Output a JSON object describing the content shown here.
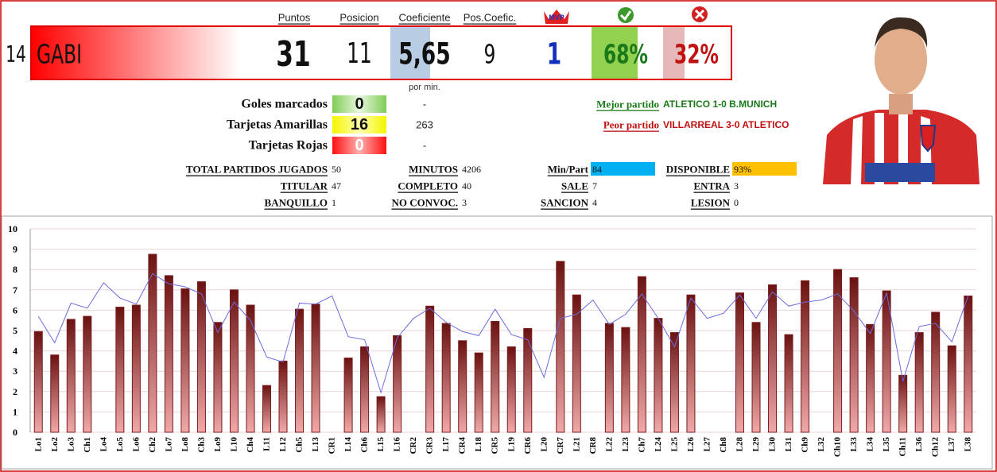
{
  "header": {
    "columns": [
      "Puntos",
      "Posicion",
      "Coeficiente",
      "Pos.Coefic."
    ],
    "mvp": "MVP"
  },
  "player": {
    "number": 14,
    "name": "GABI",
    "puntos": 31,
    "posicion": 11,
    "coeficiente": "5,65",
    "pos_coefic": 9,
    "mvp": 1,
    "win_pct": "68%",
    "loss_pct": "32%"
  },
  "stats": {
    "per_min_header": "por min.",
    "rows": [
      [
        "Goles marcados",
        0,
        "-"
      ],
      [
        "Tarjetas Amarillas",
        16,
        263
      ],
      [
        "Tarjetas Rojas",
        0,
        "-"
      ]
    ]
  },
  "matches": {
    "best": [
      "Mejor partido",
      "ATLETICO 1-0 B.MUNICH"
    ],
    "worst": [
      "Peor partido",
      "VILLARREAL 3-0 ATLETICO"
    ]
  },
  "totals": {
    "rows": [
      [
        [
          "TOTAL PARTIDOS JUGADOS",
          50
        ],
        [
          "MINUTOS",
          4206
        ],
        [
          "Min/Part",
          84
        ],
        [
          "DISPONIBLE",
          "93%"
        ]
      ],
      [
        [
          "TITULAR",
          47
        ],
        [
          "COMPLETO",
          40
        ],
        [
          "SALE",
          7
        ],
        [
          "ENTRA",
          3
        ]
      ],
      [
        [
          "BANQUILLO",
          1
        ],
        [
          "NO CONVOC.",
          3
        ],
        [
          "SANCION",
          4
        ],
        [
          "LESION",
          0
        ]
      ]
    ]
  },
  "chart_data": {
    "type": "bar",
    "categories": [
      "Lo1",
      "Lo2",
      "Lo3",
      "Ch1",
      "Lo4",
      "Lo5",
      "Lo6",
      "Ch2",
      "Lo7",
      "Lo8",
      "Ch3",
      "Lo9",
      "L10",
      "Ch4",
      "L11",
      "L12",
      "Ch5",
      "L13",
      "CR1",
      "L14",
      "Ch6",
      "L15",
      "L16",
      "CR2",
      "CR3",
      "L17",
      "CR4",
      "L18",
      "CR5",
      "L19",
      "CR6",
      "L20",
      "CR7",
      "L21",
      "CR8",
      "L22",
      "L23",
      "Ch7",
      "L24",
      "L25",
      "L26",
      "L27",
      "Ch8",
      "L28",
      "L29",
      "L30",
      "L31",
      "Ch9",
      "L32",
      "Ch10",
      "L33",
      "L34",
      "L35",
      "Ch11",
      "L36",
      "Ch12",
      "L37",
      "L38"
    ],
    "series": [
      {
        "type": "bar",
        "color": "#7a1c1c",
        "values": [
          4.95,
          3.8,
          5.55,
          5.7,
          null,
          6.15,
          6.25,
          8.75,
          7.7,
          7.05,
          7.4,
          5.4,
          7.0,
          6.25,
          2.3,
          3.5,
          6.05,
          6.3,
          null,
          3.65,
          4.2,
          1.75,
          4.75,
          null,
          6.2,
          5.35,
          4.5,
          3.9,
          5.45,
          4.2,
          5.1,
          null,
          8.4,
          6.75,
          null,
          5.35,
          5.15,
          7.65,
          5.6,
          4.9,
          6.75,
          null,
          null,
          6.85,
          5.4,
          7.25,
          4.8,
          7.45,
          null,
          8.0,
          7.6,
          5.3,
          6.95,
          2.8,
          4.9,
          5.9,
          4.25,
          6.7
        ]
      },
      {
        "type": "line",
        "color": "#6b6be0",
        "values": [
          5.7,
          4.4,
          6.35,
          6.1,
          7.35,
          6.6,
          6.3,
          7.8,
          7.3,
          7.15,
          6.8,
          4.9,
          6.4,
          5.5,
          3.7,
          3.45,
          6.35,
          6.3,
          6.7,
          4.7,
          4.55,
          1.95,
          4.65,
          5.6,
          6.1,
          5.4,
          4.95,
          4.75,
          6.05,
          4.8,
          4.55,
          2.7,
          5.6,
          5.8,
          6.5,
          5.3,
          5.8,
          6.8,
          5.6,
          4.2,
          6.6,
          5.6,
          5.85,
          6.75,
          5.6,
          6.9,
          6.2,
          6.4,
          6.5,
          6.8,
          5.95,
          4.85,
          6.85,
          2.5,
          5.2,
          5.35,
          4.45,
          6.7
        ]
      }
    ],
    "ylim": [
      0,
      10
    ],
    "yticks": [
      0,
      1,
      2,
      3,
      4,
      5,
      6,
      7,
      8,
      9,
      10
    ],
    "grid": true
  }
}
